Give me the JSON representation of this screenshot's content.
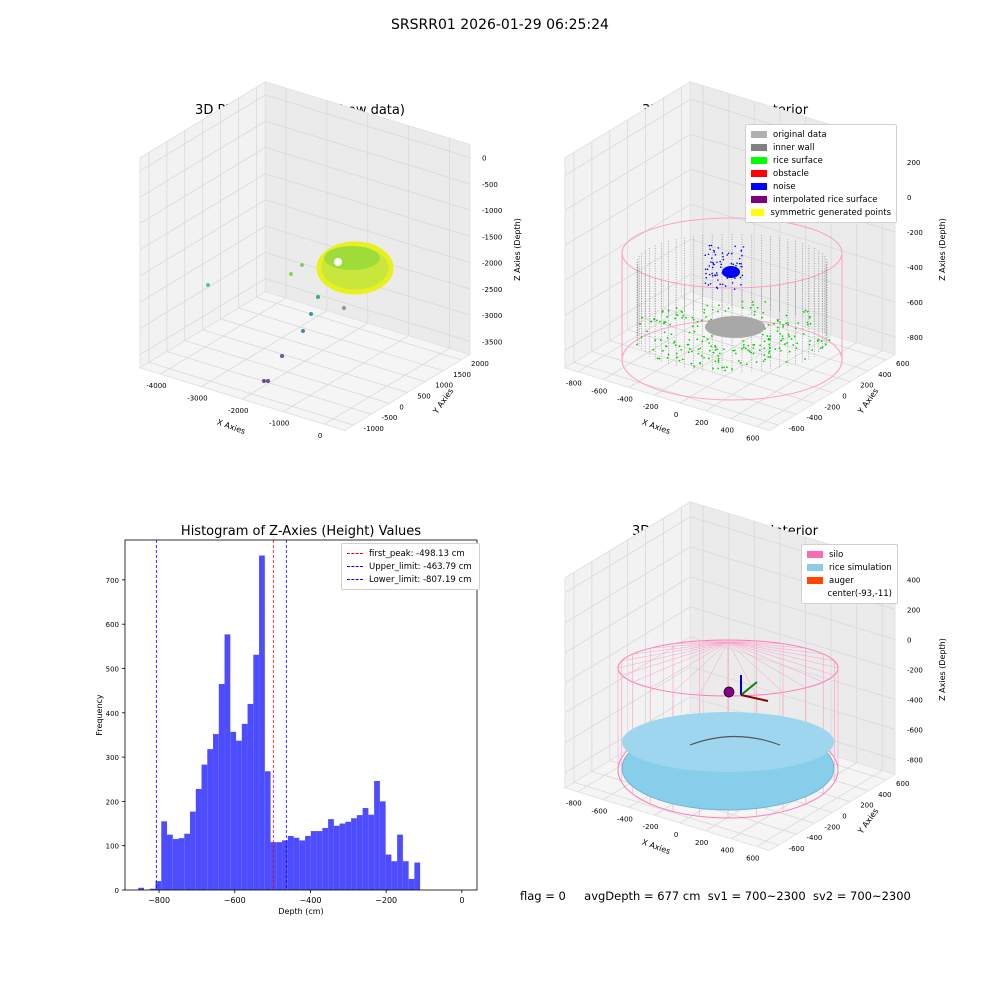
{
  "suptitle": "SRSRR01 2026-01-29 06:25:24",
  "footer": {
    "flag": "flag = 0",
    "avg": "avgDepth = 677 cm",
    "sv1": "sv1 = 700~2300",
    "sv2": "sv2 = 700~2300"
  },
  "colors": {
    "original_data": "#b0b0b0",
    "inner_wall": "#808080",
    "rice_surface": "#00ff00",
    "obstacle": "#ff0000",
    "noise": "#0000ff",
    "interpolated": "#800080",
    "symmetric": "#ffff00",
    "silo": "#ff69b4",
    "rice_sim": "#87ceeb",
    "auger": "#ff4500",
    "hist_bar": "#4d4dff"
  },
  "chart_data": [
    {
      "type": "scatter",
      "title": "3D Plot of Silo Interior(row data)",
      "xlabel": "X Axies",
      "ylabel": "Y Axies",
      "zlabel": "Z Axies (Depth)",
      "x_ticks": [
        "-4000",
        "-3000",
        "-2000",
        "-1000",
        "0"
      ],
      "y_ticks": [
        "-1000",
        "-500",
        "0",
        "500",
        "1000",
        "1500",
        "2000"
      ],
      "z_ticks": [
        "0",
        "-500",
        "-1000",
        "-1500",
        "-2000",
        "-2500",
        "-3000",
        "-3500"
      ],
      "grid": true
    },
    {
      "type": "scatter",
      "title": "3D classify of Silo Interior",
      "xlabel": "X Axies",
      "ylabel": "Y Axies",
      "zlabel": "Z Axies (Depth)",
      "x_ticks": [
        "-800",
        "-600",
        "-400",
        "-200",
        "0",
        "200",
        "400",
        "600"
      ],
      "y_ticks": [
        "-600",
        "-400",
        "-200",
        "0",
        "200",
        "400",
        "600"
      ],
      "z_ticks": [
        "200",
        "0",
        "-200",
        "-400",
        "-600",
        "-800"
      ],
      "legend": [
        "original data",
        "inner wall",
        "rice surface",
        "obstacle",
        "noise",
        "interpolated rice surface",
        "symmetric generated points"
      ],
      "legend_position": "top-right",
      "grid": true
    },
    {
      "type": "bar",
      "title": "Histogram of Z-Axies (Height) Values",
      "xlabel": "Depth (cm)",
      "ylabel": "Frequency",
      "xlim": [
        -890,
        40
      ],
      "ylim": [
        0,
        790
      ],
      "x_ticks": [
        -800,
        -600,
        -400,
        -200,
        0
      ],
      "y_ticks": [
        0,
        100,
        200,
        300,
        400,
        500,
        600,
        700
      ],
      "bin_start": -855,
      "bin_width": 15.2,
      "values": [
        5,
        0,
        3,
        20,
        155,
        125,
        115,
        117,
        127,
        177,
        228,
        283,
        318,
        352,
        465,
        577,
        357,
        337,
        375,
        420,
        531,
        755,
        268,
        108,
        108,
        112,
        122,
        118,
        112,
        122,
        133,
        133,
        140,
        160,
        145,
        150,
        154,
        162,
        169,
        185,
        170,
        246,
        200,
        80,
        65,
        125,
        65,
        25,
        62
      ],
      "lines": [
        {
          "label": "first_peak: -498.13 cm",
          "x": -498.13,
          "color": "#ff0000"
        },
        {
          "label": "Upper_limit: -463.79 cm",
          "x": -463.79,
          "color": "#0000ff"
        },
        {
          "label": "Lower_limit: -807.19 cm",
          "x": -807.19,
          "color": "#0000ff"
        }
      ],
      "legend_position": "top-right"
    },
    {
      "type": "scatter",
      "title": "3D simulation of Silo Interior",
      "xlabel": "X Axies",
      "ylabel": "Y Axies",
      "zlabel": "Z Axies (Depth)",
      "x_ticks": [
        "-800",
        "-600",
        "-400",
        "-200",
        "0",
        "200",
        "400",
        "600"
      ],
      "y_ticks": [
        "-600",
        "-400",
        "-200",
        "0",
        "200",
        "400",
        "600"
      ],
      "z_ticks": [
        "400",
        "200",
        "0",
        "-200",
        "-400",
        "-600",
        "-800"
      ],
      "legend": [
        "silo",
        "rice simulation",
        "auger",
        "center(-93,-11)"
      ],
      "legend_position": "top-right",
      "grid": true
    }
  ]
}
